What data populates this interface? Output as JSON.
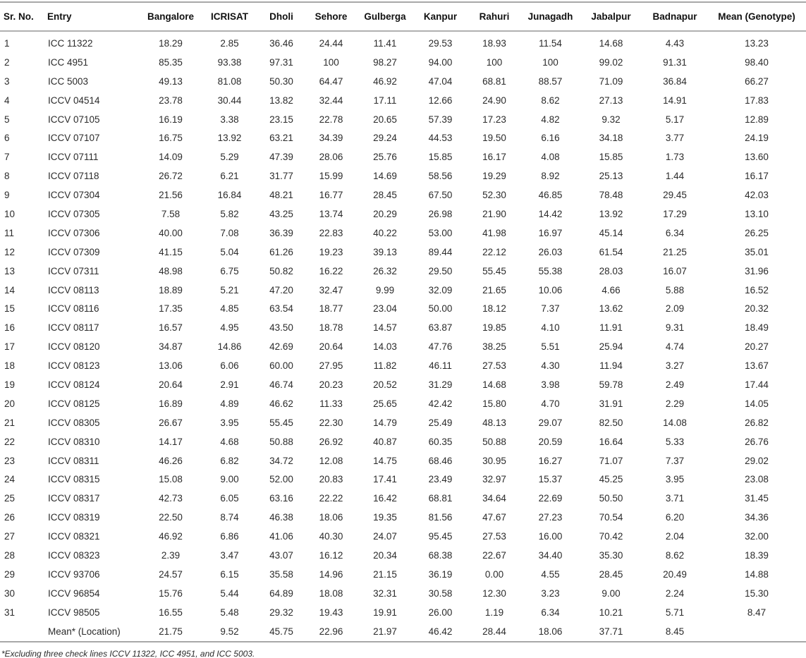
{
  "table": {
    "columns": [
      "Sr. No.",
      "Entry",
      "Bangalore",
      "ICRISAT",
      "Dholi",
      "Sehore",
      "Gulberga",
      "Kanpur",
      "Rahuri",
      "Junagadh",
      "Jabalpur",
      "Badnapur",
      "Mean (Genotype)"
    ],
    "rows": [
      {
        "sr": "1",
        "entry": "ICC 11322",
        "values": [
          "18.29",
          "2.85",
          "36.46",
          "24.44",
          "11.41",
          "29.53",
          "18.93",
          "11.54",
          "14.68",
          "4.43",
          "13.23"
        ]
      },
      {
        "sr": "2",
        "entry": "ICC 4951",
        "values": [
          "85.35",
          "93.38",
          "97.31",
          "100",
          "98.27",
          "94.00",
          "100",
          "100",
          "99.02",
          "91.31",
          "98.40"
        ]
      },
      {
        "sr": "3",
        "entry": "ICC 5003",
        "values": [
          "49.13",
          "81.08",
          "50.30",
          "64.47",
          "46.92",
          "47.04",
          "68.81",
          "88.57",
          "71.09",
          "36.84",
          "66.27"
        ]
      },
      {
        "sr": "4",
        "entry": "ICCV 04514",
        "values": [
          "23.78",
          "30.44",
          "13.82",
          "32.44",
          "17.11",
          "12.66",
          "24.90",
          "8.62",
          "27.13",
          "14.91",
          "17.83"
        ]
      },
      {
        "sr": "5",
        "entry": "ICCV 07105",
        "values": [
          "16.19",
          "3.38",
          "23.15",
          "22.78",
          "20.65",
          "57.39",
          "17.23",
          "4.82",
          "9.32",
          "5.17",
          "12.89"
        ]
      },
      {
        "sr": "6",
        "entry": "ICCV 07107",
        "values": [
          "16.75",
          "13.92",
          "63.21",
          "34.39",
          "29.24",
          "44.53",
          "19.50",
          "6.16",
          "34.18",
          "3.77",
          "24.19"
        ]
      },
      {
        "sr": "7",
        "entry": "ICCV 07111",
        "values": [
          "14.09",
          "5.29",
          "47.39",
          "28.06",
          "25.76",
          "15.85",
          "16.17",
          "4.08",
          "15.85",
          "1.73",
          "13.60"
        ]
      },
      {
        "sr": "8",
        "entry": "ICCV 07118",
        "values": [
          "26.72",
          "6.21",
          "31.77",
          "15.99",
          "14.69",
          "58.56",
          "19.29",
          "8.92",
          "25.13",
          "1.44",
          "16.17"
        ]
      },
      {
        "sr": "9",
        "entry": "ICCV 07304",
        "values": [
          "21.56",
          "16.84",
          "48.21",
          "16.77",
          "28.45",
          "67.50",
          "52.30",
          "46.85",
          "78.48",
          "29.45",
          "42.03"
        ]
      },
      {
        "sr": "10",
        "entry": "ICCV 07305",
        "values": [
          "7.58",
          "5.82",
          "43.25",
          "13.74",
          "20.29",
          "26.98",
          "21.90",
          "14.42",
          "13.92",
          "17.29",
          "13.10"
        ]
      },
      {
        "sr": "11",
        "entry": "ICCV 07306",
        "values": [
          "40.00",
          "7.08",
          "36.39",
          "22.83",
          "40.22",
          "53.00",
          "41.98",
          "16.97",
          "45.14",
          "6.34",
          "26.25"
        ]
      },
      {
        "sr": "12",
        "entry": "ICCV 07309",
        "values": [
          "41.15",
          "5.04",
          "61.26",
          "19.23",
          "39.13",
          "89.44",
          "22.12",
          "26.03",
          "61.54",
          "21.25",
          "35.01"
        ]
      },
      {
        "sr": "13",
        "entry": "ICCV 07311",
        "values": [
          "48.98",
          "6.75",
          "50.82",
          "16.22",
          "26.32",
          "29.50",
          "55.45",
          "55.38",
          "28.03",
          "16.07",
          "31.96"
        ]
      },
      {
        "sr": "14",
        "entry": "ICCV 08113",
        "values": [
          "18.89",
          "5.21",
          "47.20",
          "32.47",
          "9.99",
          "32.09",
          "21.65",
          "10.06",
          "4.66",
          "5.88",
          "16.52"
        ]
      },
      {
        "sr": "15",
        "entry": "ICCV 08116",
        "values": [
          "17.35",
          "4.85",
          "63.54",
          "18.77",
          "23.04",
          "50.00",
          "18.12",
          "7.37",
          "13.62",
          "2.09",
          "20.32"
        ]
      },
      {
        "sr": "16",
        "entry": "ICCV 08117",
        "values": [
          "16.57",
          "4.95",
          "43.50",
          "18.78",
          "14.57",
          "63.87",
          "19.85",
          "4.10",
          "11.91",
          "9.31",
          "18.49"
        ]
      },
      {
        "sr": "17",
        "entry": "ICCV 08120",
        "values": [
          "34.87",
          "14.86",
          "42.69",
          "20.64",
          "14.03",
          "47.76",
          "38.25",
          "5.51",
          "25.94",
          "4.74",
          "20.27"
        ]
      },
      {
        "sr": "18",
        "entry": "ICCV 08123",
        "values": [
          "13.06",
          "6.06",
          "60.00",
          "27.95",
          "11.82",
          "46.11",
          "27.53",
          "4.30",
          "11.94",
          "3.27",
          "13.67"
        ]
      },
      {
        "sr": "19",
        "entry": "ICCV 08124",
        "values": [
          "20.64",
          "2.91",
          "46.74",
          "20.23",
          "20.52",
          "31.29",
          "14.68",
          "3.98",
          "59.78",
          "2.49",
          "17.44"
        ]
      },
      {
        "sr": "20",
        "entry": "ICCV 08125",
        "values": [
          "16.89",
          "4.89",
          "46.62",
          "11.33",
          "25.65",
          "42.42",
          "15.80",
          "4.70",
          "31.91",
          "2.29",
          "14.05"
        ]
      },
      {
        "sr": "21",
        "entry": "ICCV 08305",
        "values": [
          "26.67",
          "3.95",
          "55.45",
          "22.30",
          "14.79",
          "25.49",
          "48.13",
          "29.07",
          "82.50",
          "14.08",
          "26.82"
        ]
      },
      {
        "sr": "22",
        "entry": "ICCV 08310",
        "values": [
          "14.17",
          "4.68",
          "50.88",
          "26.92",
          "40.87",
          "60.35",
          "50.88",
          "20.59",
          "16.64",
          "5.33",
          "26.76"
        ]
      },
      {
        "sr": "23",
        "entry": "ICCV 08311",
        "values": [
          "46.26",
          "6.82",
          "34.72",
          "12.08",
          "14.75",
          "68.46",
          "30.95",
          "16.27",
          "71.07",
          "7.37",
          "29.02"
        ]
      },
      {
        "sr": "24",
        "entry": "ICCV 08315",
        "values": [
          "15.08",
          "9.00",
          "52.00",
          "20.83",
          "17.41",
          "23.49",
          "32.97",
          "15.37",
          "45.25",
          "3.95",
          "23.08"
        ]
      },
      {
        "sr": "25",
        "entry": "ICCV 08317",
        "values": [
          "42.73",
          "6.05",
          "63.16",
          "22.22",
          "16.42",
          "68.81",
          "34.64",
          "22.69",
          "50.50",
          "3.71",
          "31.45"
        ]
      },
      {
        "sr": "26",
        "entry": "ICCV 08319",
        "values": [
          "22.50",
          "8.74",
          "46.38",
          "18.06",
          "19.35",
          "81.56",
          "47.67",
          "27.23",
          "70.54",
          "6.20",
          "34.36"
        ]
      },
      {
        "sr": "27",
        "entry": "ICCV 08321",
        "values": [
          "46.92",
          "6.86",
          "41.06",
          "40.30",
          "24.07",
          "95.45",
          "27.53",
          "16.00",
          "70.42",
          "2.04",
          "32.00"
        ]
      },
      {
        "sr": "28",
        "entry": "ICCV 08323",
        "values": [
          "2.39",
          "3.47",
          "43.07",
          "16.12",
          "20.34",
          "68.38",
          "22.67",
          "34.40",
          "35.30",
          "8.62",
          "18.39"
        ]
      },
      {
        "sr": "29",
        "entry": "ICCV 93706",
        "values": [
          "24.57",
          "6.15",
          "35.58",
          "14.96",
          "21.15",
          "36.19",
          "0.00",
          "4.55",
          "28.45",
          "20.49",
          "14.88"
        ]
      },
      {
        "sr": "30",
        "entry": "ICCV 96854",
        "values": [
          "15.76",
          "5.44",
          "64.89",
          "18.08",
          "32.31",
          "30.58",
          "12.30",
          "3.23",
          "9.00",
          "2.24",
          "15.30"
        ]
      },
      {
        "sr": "31",
        "entry": "ICCV 98505",
        "values": [
          "16.55",
          "5.48",
          "29.32",
          "19.43",
          "19.91",
          "26.00",
          "1.19",
          "6.34",
          "10.21",
          "5.71",
          "8.47"
        ]
      }
    ],
    "mean_row": {
      "sr": "",
      "label": "Mean* (Location)",
      "values": [
        "21.75",
        "9.52",
        "45.75",
        "22.96",
        "21.97",
        "46.42",
        "28.44",
        "18.06",
        "37.71",
        "8.45",
        ""
      ]
    },
    "footnote": "*Excluding three check lines ICCV 11322, ICC 4951, and ICC 5003."
  }
}
